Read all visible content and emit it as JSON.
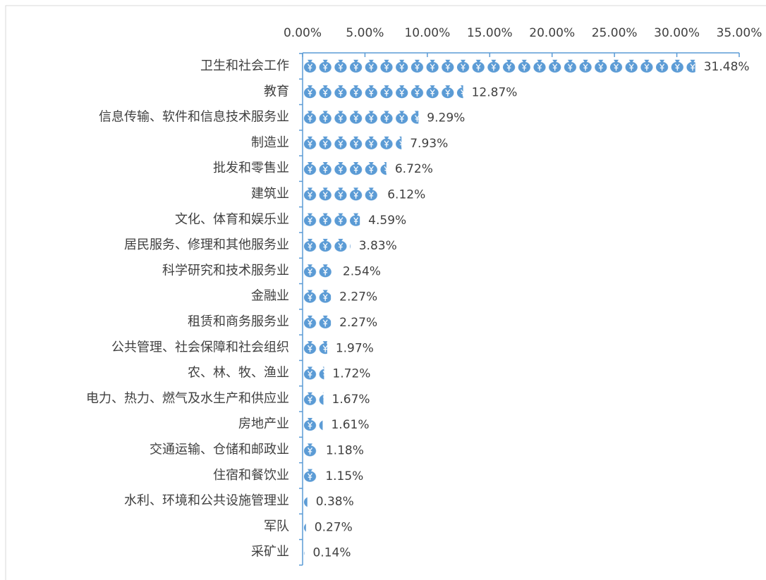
{
  "chart_data": {
    "type": "bar",
    "orientation": "horizontal",
    "color": "#5b9bd5",
    "categories": [
      "卫生和社会工作",
      "教育",
      "信息传输、软件和信息技术服务业",
      "制造业",
      "批发和零售业",
      "建筑业",
      "文化、体育和娱乐业",
      "居民服务、修理和其他服务业",
      "科学研究和技术服务业",
      "金融业",
      "租赁和商务服务业",
      "公共管理、社会保障和社会组织",
      "农、林、牧、渔业",
      "电力、热力、燃气及水生产和供应业",
      "房地产业",
      "交通运输、仓储和邮政业",
      "住宿和餐饮业",
      "水利、环境和公共设施管理业",
      "军队",
      "采矿业"
    ],
    "values": [
      31.48,
      12.87,
      9.29,
      7.93,
      6.72,
      6.12,
      4.59,
      3.83,
      2.54,
      2.27,
      2.27,
      1.97,
      1.72,
      1.67,
      1.61,
      1.18,
      1.15,
      0.38,
      0.27,
      0.14
    ],
    "value_labels": [
      "31.48%",
      "12.87%",
      "9.29%",
      "7.93%",
      "6.72%",
      "6.12%",
      "4.59%",
      "3.83%",
      "2.54%",
      "2.27%",
      "2.27%",
      "1.97%",
      "1.72%",
      "1.67%",
      "1.61%",
      "1.18%",
      "1.15%",
      "0.38%",
      "0.27%",
      "0.14%"
    ],
    "xlim": [
      0,
      35
    ],
    "xticks": [
      {
        "value": 0,
        "label": "0.00%"
      },
      {
        "value": 5,
        "label": "5.00%"
      },
      {
        "value": 10,
        "label": "10.00%"
      },
      {
        "value": 15,
        "label": "15.00%"
      },
      {
        "value": 20,
        "label": "20.00%"
      },
      {
        "value": 25,
        "label": "25.00%"
      },
      {
        "value": 30,
        "label": "30.00%"
      },
      {
        "value": 35,
        "label": "35.00%"
      }
    ]
  }
}
